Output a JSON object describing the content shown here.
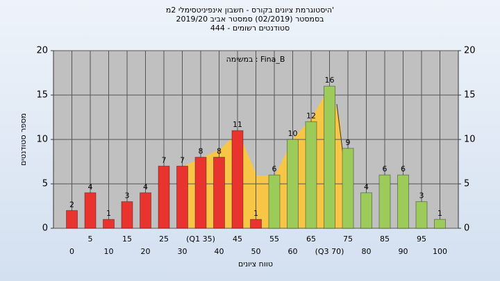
{
  "chart_data": {
    "type": "bar",
    "title": "היסטוגרמת ציונים בקורס - חשבון אינפיניטסימלי 2מ'",
    "subtitle": "בסמסטר  (02/2019)  סמסטר אביב 2019/20",
    "subtitle2": "סטודנטים רשומים - 444",
    "annotation": "במשימה : Fina_B",
    "xlabel": "טווח ציונים",
    "ylabel": "מספר סטודנטים",
    "categories": [
      "0",
      "5",
      "10",
      "15",
      "20",
      "25",
      "30",
      "(Q1 35)",
      "40",
      "45",
      "50",
      "55",
      "60",
      "65",
      "(Q3 70)",
      "75",
      "80",
      "85",
      "90",
      "95",
      "100"
    ],
    "values": [
      2,
      4,
      1,
      3,
      4,
      7,
      7,
      8,
      8,
      11,
      1,
      6,
      10,
      12,
      16,
      9,
      4,
      6,
      6,
      3,
      1
    ],
    "colors": [
      "#e8332e",
      "#e8332e",
      "#e8332e",
      "#e8332e",
      "#e8332e",
      "#e8332e",
      "#e8332e",
      "#e8332e",
      "#e8332e",
      "#e8332e",
      "#e8332e",
      "#9ccb5a",
      "#9ccb5a",
      "#9ccb5a",
      "#9ccb5a",
      "#9ccb5a",
      "#9ccb5a",
      "#9ccb5a",
      "#9ccb5a",
      "#9ccb5a",
      "#9ccb5a"
    ],
    "ylim": [
      0,
      20
    ],
    "yticks": [
      0,
      5,
      10,
      15,
      20
    ],
    "y2lim": [
      0,
      20
    ],
    "y2ticks": [
      0,
      5,
      10,
      15,
      20
    ],
    "grid": true
  }
}
